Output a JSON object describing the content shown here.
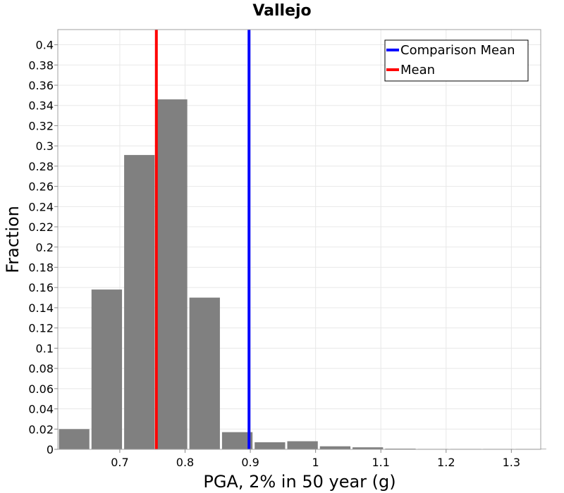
{
  "chart_data": {
    "type": "bar",
    "title": "Vallejo",
    "xlabel": "PGA, 2% in 50 year (g)",
    "ylabel": "Fraction",
    "xlim": [
      0.605,
      1.345
    ],
    "ylim": [
      0,
      0.415
    ],
    "xticks": [
      0.7,
      0.8,
      0.9,
      1,
      1.1,
      1.2,
      1.3
    ],
    "xtick_labels": [
      "0.7",
      "0.8",
      "0.9",
      "1",
      "1.1",
      "1.2",
      "1.3"
    ],
    "yticks": [
      0,
      0.02,
      0.04,
      0.06,
      0.08,
      0.1,
      0.12,
      0.14,
      0.16,
      0.18,
      0.2,
      0.22,
      0.24,
      0.26,
      0.28,
      0.3,
      0.32,
      0.34,
      0.36,
      0.38,
      0.4
    ],
    "ytick_labels": [
      "0",
      "0.02",
      "0.04",
      "0.06",
      "0.08",
      "0.1",
      "0.12",
      "0.14",
      "0.16",
      "0.18",
      "0.2",
      "0.22",
      "0.24",
      "0.26",
      "0.28",
      "0.3",
      "0.32",
      "0.34",
      "0.36",
      "0.38",
      "0.4"
    ],
    "bin_width": 0.05,
    "bins": [
      {
        "x": 0.63,
        "value": 0.02
      },
      {
        "x": 0.68,
        "value": 0.158
      },
      {
        "x": 0.73,
        "value": 0.291
      },
      {
        "x": 0.78,
        "value": 0.346
      },
      {
        "x": 0.83,
        "value": 0.15
      },
      {
        "x": 0.88,
        "value": 0.017
      },
      {
        "x": 0.93,
        "value": 0.007
      },
      {
        "x": 0.98,
        "value": 0.008
      },
      {
        "x": 1.03,
        "value": 0.003
      },
      {
        "x": 1.08,
        "value": 0.002
      },
      {
        "x": 1.13,
        "value": 0.0007
      },
      {
        "x": 1.18,
        "value": 0.0003
      },
      {
        "x": 1.23,
        "value": 0.0002
      },
      {
        "x": 1.28,
        "value": 0.0001
      },
      {
        "x": 1.33,
        "value": 0.0001
      }
    ],
    "bar_color": "#808080",
    "lines": [
      {
        "name": "Comparison Mean",
        "x": 0.898,
        "color": "#0000ff"
      },
      {
        "name": "Mean",
        "x": 0.756,
        "color": "#ff0000"
      }
    ],
    "legend_position": "top-right",
    "grid": true,
    "grid_color": "#e8e8e8"
  }
}
